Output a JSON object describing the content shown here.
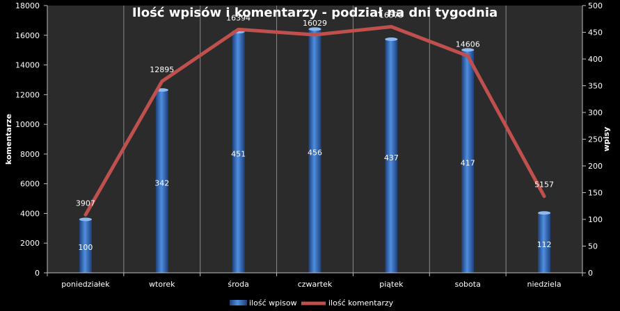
{
  "chart_data": {
    "type": "bar",
    "title": "Ilość wpisów i komentarzy - podział na dni tygodnia",
    "categories": [
      "poniedziałek",
      "wtorek",
      "środa",
      "czwartek",
      "piątek",
      "sobota",
      "niedziela"
    ],
    "series": [
      {
        "name": "ilość wpisow",
        "type": "bar",
        "axis": "right",
        "values": [
          100,
          342,
          451,
          456,
          437,
          417,
          112
        ],
        "color": "#3a74c8"
      },
      {
        "name": "ilość komentarzy",
        "type": "line",
        "axis": "left",
        "values": [
          3907,
          12895,
          16394,
          16029,
          16575,
          14606,
          5157
        ],
        "color": "#c0504d"
      }
    ],
    "ylabel_left": "komentarze",
    "ylabel_right": "wpisy",
    "ylim_left": [
      0,
      18000
    ],
    "yticks_left": [
      0,
      2000,
      4000,
      6000,
      8000,
      10000,
      12000,
      14000,
      16000,
      18000
    ],
    "ylim_right": [
      0,
      500
    ],
    "yticks_right": [
      0,
      50,
      100,
      150,
      200,
      250,
      300,
      350,
      400,
      450,
      500
    ],
    "grid": "vertical category separators",
    "legend_position": "bottom",
    "background": "#000000",
    "plot_background": "#2b2b2b"
  }
}
